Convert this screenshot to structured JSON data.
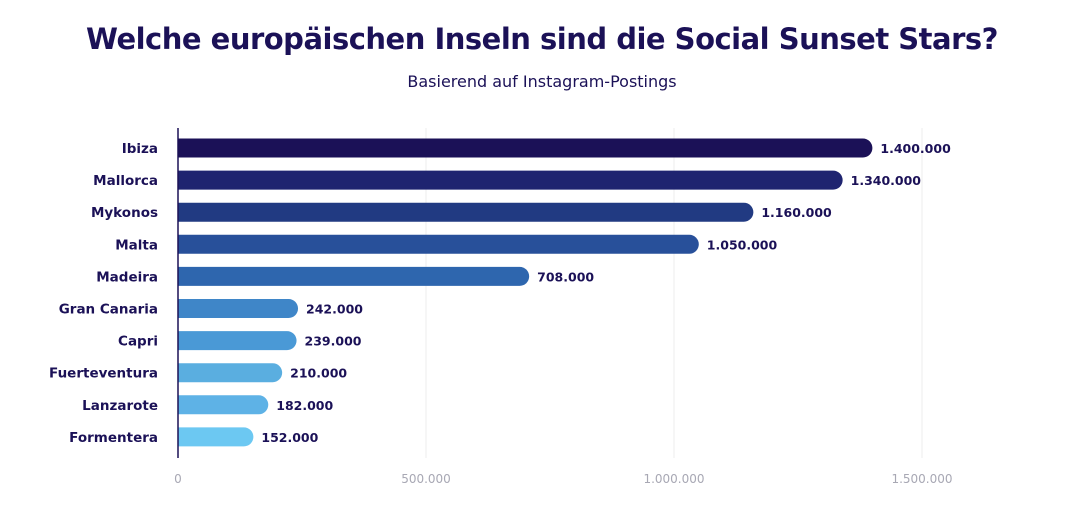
{
  "chart_data": {
    "type": "bar",
    "orientation": "horizontal",
    "title": "Welche europäischen Inseln sind die Social Sunset Stars?",
    "subtitle": "Basierend auf Instagram-Postings",
    "categories": [
      "Ibiza",
      "Mallorca",
      "Mykonos",
      "Malta",
      "Madeira",
      "Gran Canaria",
      "Capri",
      "Fuerteventura",
      "Lanzarote",
      "Formentera"
    ],
    "values": [
      1400000,
      1340000,
      1160000,
      1050000,
      708000,
      242000,
      239000,
      210000,
      182000,
      152000
    ],
    "value_labels": [
      "1.400.000",
      "1.340.000",
      "1.160.000",
      "1.050.000",
      "708.000",
      "242.000",
      "239.000",
      "210.000",
      "182.000",
      "152.000"
    ],
    "colors": [
      "#1b1157",
      "#1f2470",
      "#213a82",
      "#28509a",
      "#2e66ae",
      "#3f86c8",
      "#4a99d6",
      "#5aaee0",
      "#5eb2e6",
      "#6cc8f2"
    ],
    "xlim": [
      0,
      1500000
    ],
    "xticks": [
      0,
      500000,
      1000000,
      1500000
    ],
    "xtick_labels": [
      "0",
      "500.000",
      "1.000.000",
      "1.500.000"
    ],
    "grid": true,
    "xlabel": "",
    "ylabel": ""
  }
}
